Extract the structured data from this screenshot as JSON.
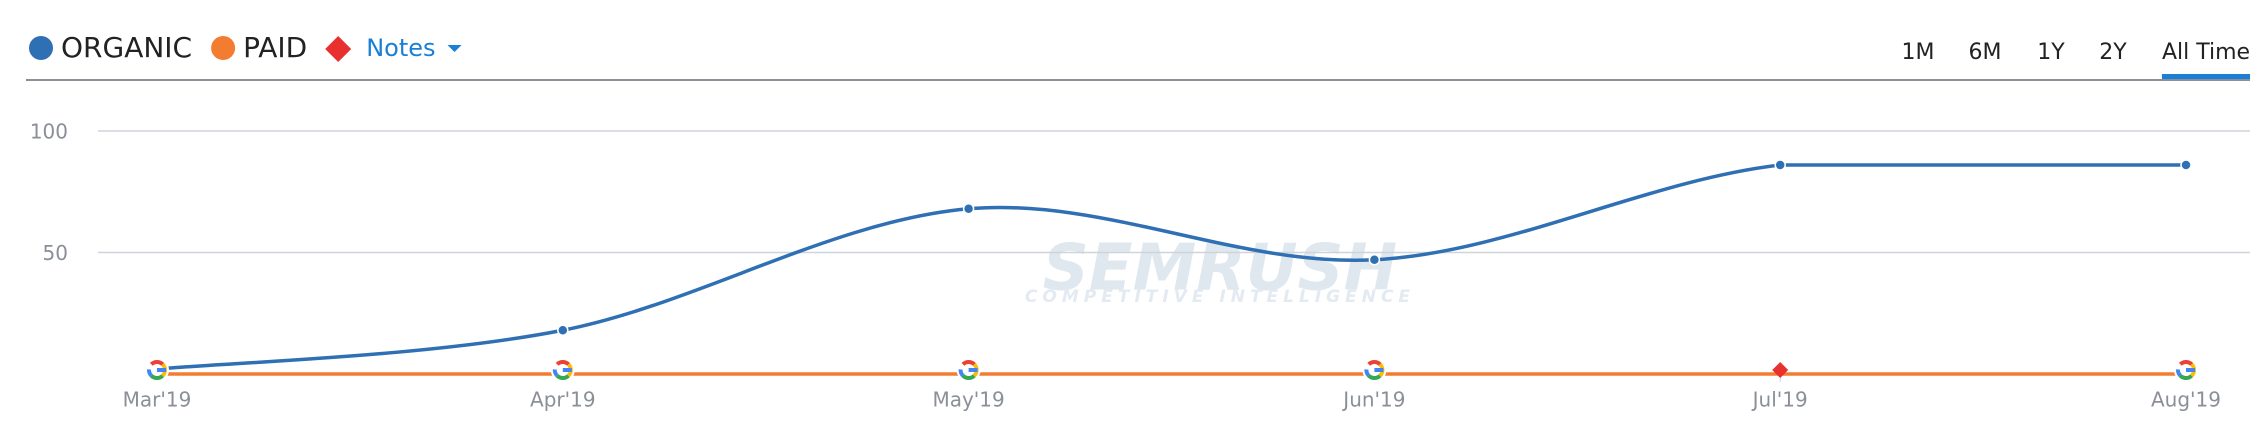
{
  "chart_data": {
    "type": "line",
    "legend": [
      "ORGANIC",
      "PAID"
    ],
    "notes_label": "Notes",
    "periods": [
      "1M",
      "6M",
      "1Y",
      "2Y",
      "All Time"
    ],
    "active_period": "All Time",
    "watermark": [
      "SEMRUSH",
      "COMPETITIVE INTELLIGENCE"
    ],
    "categories": [
      "Mar'19",
      "Apr'19",
      "May'19",
      "Jun'19",
      "Jul'19",
      "Aug'19"
    ],
    "series": [
      {
        "name": "ORGANIC",
        "color": "#2f6fb3",
        "values": [
          2,
          18,
          68,
          47,
          86,
          86
        ]
      },
      {
        "name": "PAID",
        "color": "#f47c30",
        "values": [
          0,
          0,
          0,
          0,
          0,
          0
        ]
      }
    ],
    "ylim": [
      0,
      100
    ],
    "yticks": [
      50,
      100
    ],
    "grid": true
  }
}
